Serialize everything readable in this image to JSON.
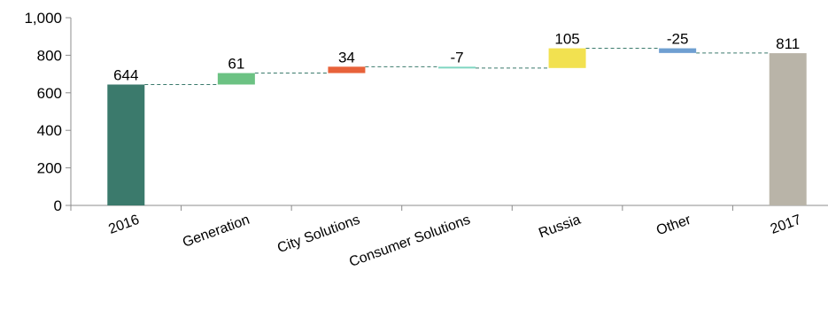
{
  "chart_data": {
    "type": "waterfall",
    "categories": [
      "2016",
      "Generation",
      "City Solutions",
      "Consumer Solutions",
      "Russia",
      "Other",
      "2017"
    ],
    "values": [
      644,
      61,
      34,
      -7,
      105,
      -25,
      811
    ],
    "data_labels": [
      "644",
      "61",
      "34",
      "-7",
      "105",
      "-25",
      "811"
    ],
    "bar_kinds": [
      "total",
      "delta",
      "delta",
      "delta",
      "delta",
      "delta",
      "total"
    ],
    "colors": [
      "#3b7a6c",
      "#6cc283",
      "#e8623a",
      "#7fd6c2",
      "#f2e150",
      "#6f9fd1",
      "#b9b4a8"
    ],
    "connector_color": "#3b7a6c",
    "ylim": [
      0,
      1000
    ],
    "yticks": [
      0,
      200,
      400,
      600,
      800,
      1000
    ],
    "ytick_labels": [
      "0",
      "200",
      "400",
      "600",
      "800",
      "1,000"
    ],
    "grid": false,
    "legend": "none"
  }
}
